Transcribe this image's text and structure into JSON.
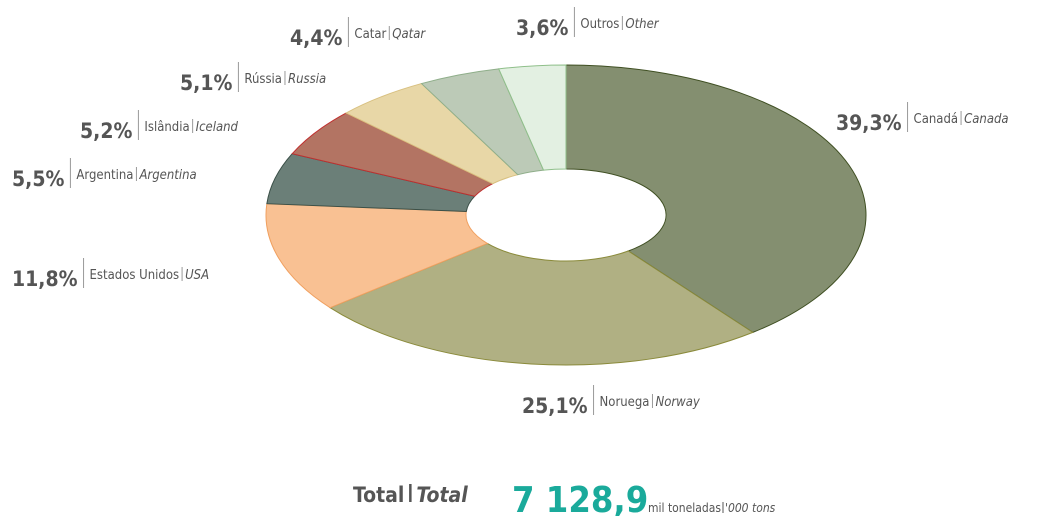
{
  "chart_data": {
    "type": "pie",
    "donut": true,
    "categories": [
      "Canadá",
      "Noruega",
      "Estados Unidos",
      "Argentina",
      "Islândia",
      "Rússia",
      "Catar",
      "Outros"
    ],
    "categories_en": [
      "Canada",
      "Norway",
      "USA",
      "Argentina",
      "Iceland",
      "Russia",
      "Qatar",
      "Other"
    ],
    "values": [
      39.3,
      25.1,
      11.8,
      5.5,
      5.2,
      5.1,
      4.4,
      3.6
    ],
    "value_labels": [
      "39,3%",
      "25,1%",
      "11,8%",
      "5,5%",
      "5,2%",
      "5,1%",
      "4,4%",
      "3,6%"
    ],
    "colors": [
      "#848f70",
      "#b0b083",
      "#f9c193",
      "#6b7f78",
      "#b37463",
      "#e8d7a7",
      "#bccab7",
      "#e3f0e2"
    ],
    "strokes": [
      "#3f4f22",
      "#8a8a3a",
      "#f0a060",
      "#3a4f47",
      "#c03030",
      "#d8c080",
      "#8fae8a",
      "#8fbf8a"
    ],
    "total": {
      "label": "Total",
      "label_en": "Total",
      "value": "7 128,9",
      "unit": "mil toneladas",
      "unit_en": "'000 tons"
    }
  }
}
